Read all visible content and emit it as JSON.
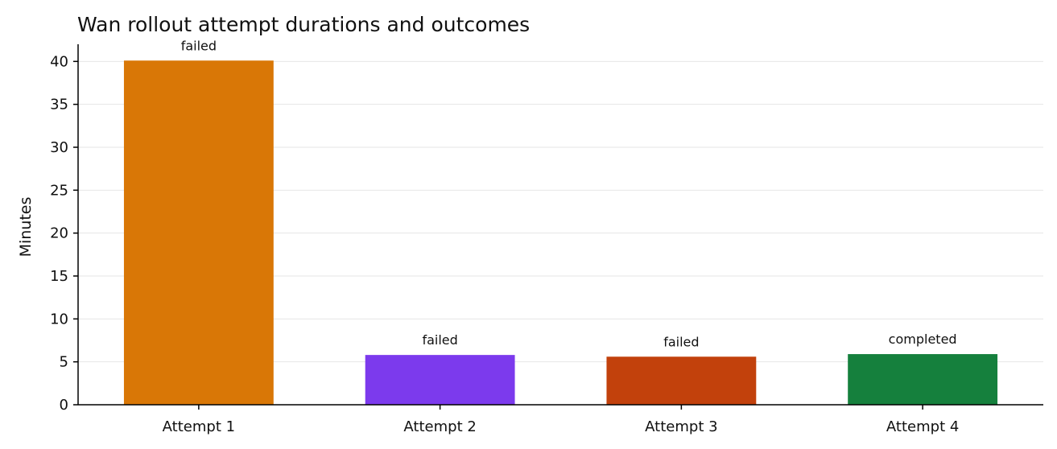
{
  "chart_data": {
    "type": "bar",
    "title": "Wan rollout attempt durations and outcomes",
    "xlabel": "",
    "ylabel": "Minutes",
    "ylim": [
      0,
      42
    ],
    "yticks": [
      0,
      5,
      10,
      15,
      20,
      25,
      30,
      35,
      40
    ],
    "grid": "horizontal",
    "categories": [
      "Attempt 1",
      "Attempt 2",
      "Attempt 3",
      "Attempt 4"
    ],
    "values": [
      40.1,
      5.8,
      5.6,
      5.9
    ],
    "bar_labels": [
      "failed",
      "failed",
      "failed",
      "completed"
    ],
    "colors": [
      "#d97706",
      "#7c3aed",
      "#c2410c",
      "#15803d"
    ]
  }
}
